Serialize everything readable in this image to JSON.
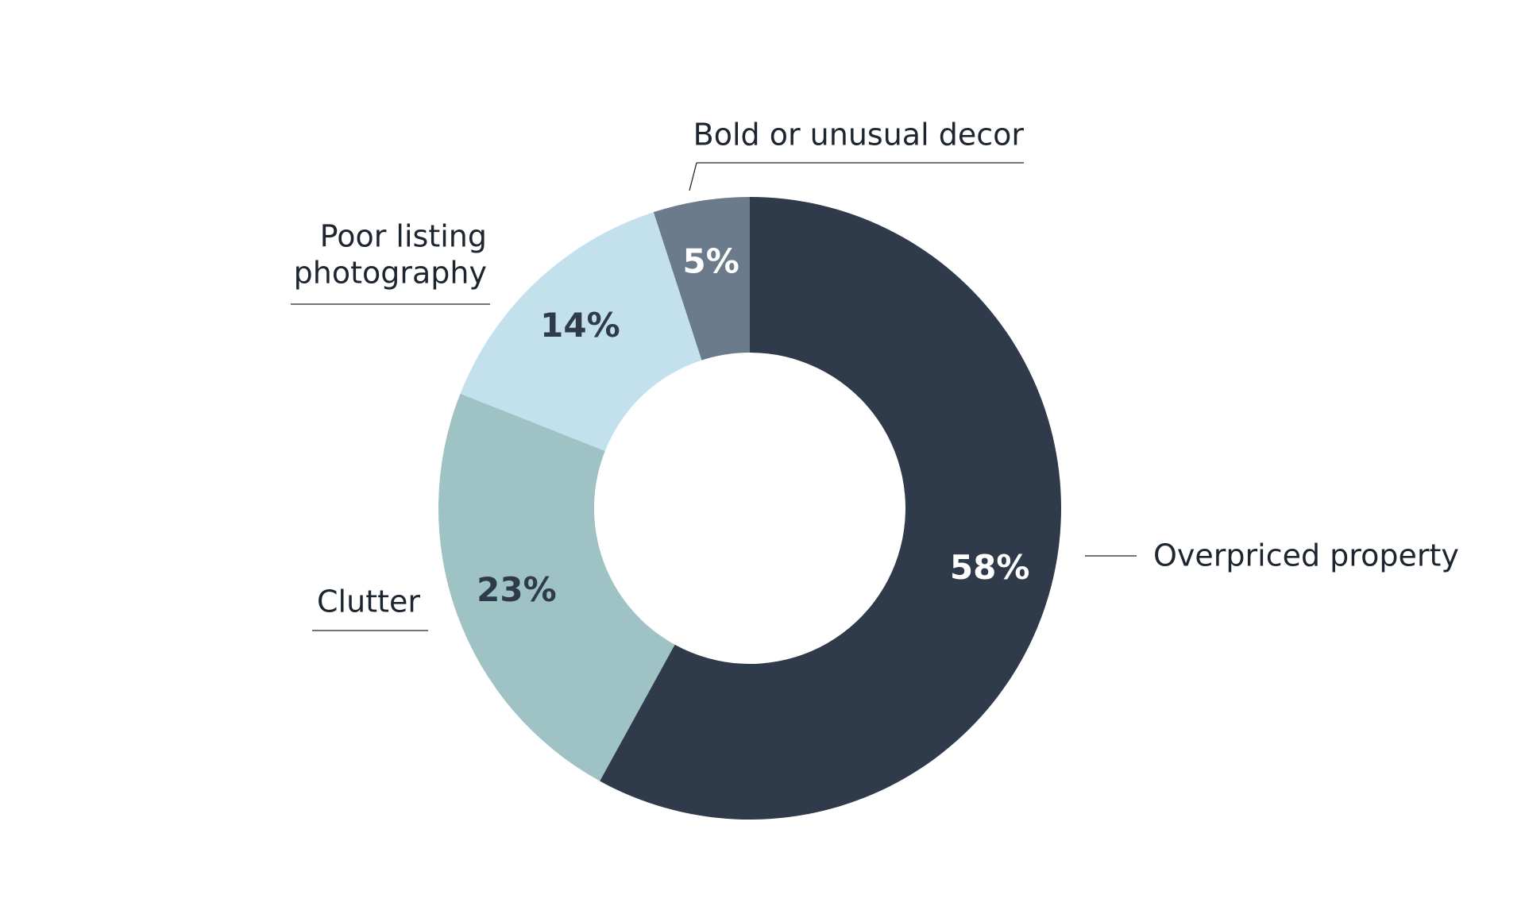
{
  "chart_data": {
    "type": "pie",
    "variant": "donut",
    "categories": [
      "Overpriced property",
      "Clutter",
      "Poor listing photography",
      "Bold or unusual decor"
    ],
    "values": [
      58,
      23,
      14,
      5
    ],
    "value_labels": [
      "58%",
      "23%",
      "14%",
      "5%"
    ],
    "category_label_lines": [
      [
        "Overpriced property"
      ],
      [
        "Clutter"
      ],
      [
        "Poor listing",
        "photography"
      ],
      [
        "Bold or unusual decor"
      ]
    ],
    "colors": [
      "#2f3b4a",
      "#9fc3c5",
      "#c2e1ec",
      "#6b7b8b"
    ],
    "value_label_colors": [
      "#ffffff",
      "#2f3b4a",
      "#2f3b4a",
      "#ffffff"
    ],
    "start_angle": "12 o'clock",
    "direction": "clockwise",
    "legend": "none"
  }
}
